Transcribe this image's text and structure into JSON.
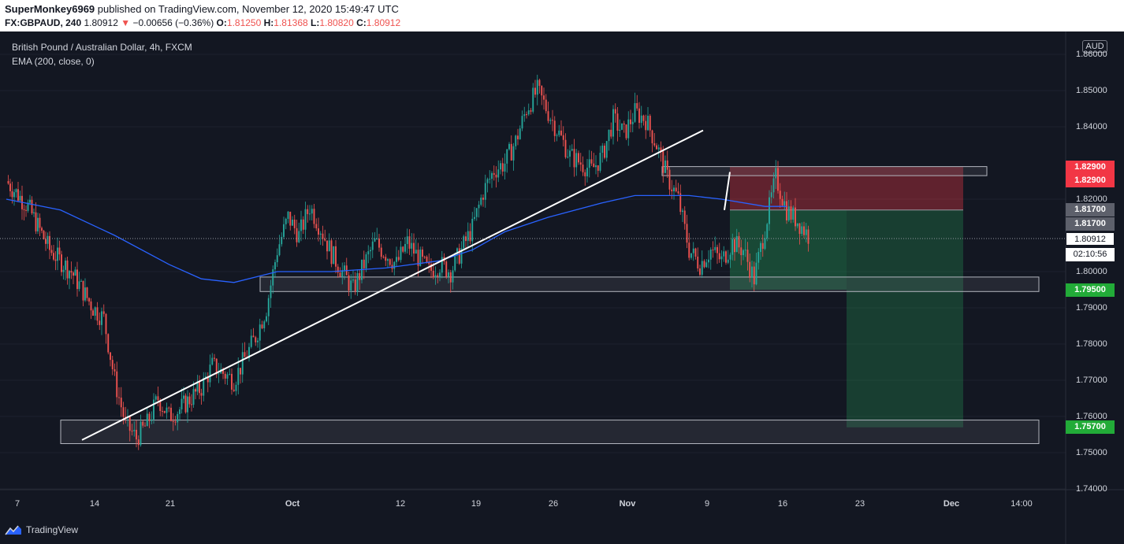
{
  "header": {
    "user": "SuperMonkey6969",
    "published_text": "published on TradingView.com, November 12, 2020 15:49:47 UTC",
    "symbol_timeframe": "FX:GBPAUD, 240",
    "last_price": "1.80912",
    "change_arrow": "▼",
    "change": "−0.00656 (−0.36%)",
    "open_label": "O:",
    "open": "1.81250",
    "high_label": "H:",
    "high": "1.81368",
    "low_label": "L:",
    "low": "1.80820",
    "close_label": "C:",
    "close": "1.80912"
  },
  "chart": {
    "title": "British Pound / Australian Dollar, 4h, FXCM",
    "indicator": "EMA (200, close, 0)",
    "currency": "AUD",
    "colors": {
      "background": "#131722",
      "up": "#26a69a",
      "down": "#ef5350",
      "ema": "#2962ff",
      "trendline": "#ffffff"
    }
  },
  "y_axis": {
    "ticks": [
      "1.86000",
      "1.85000",
      "1.84000",
      "1.82000",
      "1.80000",
      "1.79000",
      "1.78000",
      "1.77000",
      "1.76000",
      "1.75000",
      "1.74000"
    ]
  },
  "x_axis": {
    "ticks": [
      "7",
      "14",
      "21",
      "Oct",
      "12",
      "19",
      "26",
      "Nov",
      "9",
      "16",
      "23",
      "Dec",
      "14:00"
    ]
  },
  "price_tags": {
    "stop_1": "1.82900",
    "stop_2": "1.82900",
    "entry_1": "1.81700",
    "entry_2": "1.81700",
    "current": "1.80912",
    "countdown": "02:10:56",
    "target_1": "1.79500",
    "target_2": "1.75700"
  },
  "chart_data": {
    "type": "candlestick",
    "symbol": "FX:GBPAUD",
    "timeframe": "4h",
    "ylim": [
      1.74,
      1.862
    ],
    "close_path": [
      [
        0,
        1.825
      ],
      [
        2,
        1.818
      ],
      [
        4,
        1.806
      ],
      [
        6,
        1.8
      ],
      [
        8,
        1.79
      ],
      [
        9,
        1.787
      ],
      [
        10,
        1.77
      ],
      [
        11,
        1.758
      ],
      [
        12,
        1.754
      ],
      [
        13,
        1.758
      ],
      [
        14,
        1.765
      ],
      [
        15,
        1.76
      ],
      [
        16,
        1.762
      ],
      [
        18,
        1.768
      ],
      [
        19,
        1.774
      ],
      [
        20,
        1.772
      ],
      [
        21,
        1.77
      ],
      [
        22,
        1.776
      ],
      [
        23,
        1.782
      ],
      [
        24,
        1.79
      ],
      [
        25,
        1.806
      ],
      [
        26,
        1.815
      ],
      [
        27,
        1.81
      ],
      [
        28,
        1.818
      ],
      [
        29,
        1.812
      ],
      [
        30,
        1.805
      ],
      [
        31,
        1.8
      ],
      [
        32,
        1.795
      ],
      [
        33,
        1.802
      ],
      [
        34,
        1.808
      ],
      [
        35,
        1.805
      ],
      [
        36,
        1.802
      ],
      [
        37,
        1.808
      ],
      [
        38,
        1.804
      ],
      [
        39,
        1.8
      ],
      [
        40,
        1.802
      ],
      [
        41,
        1.8
      ],
      [
        42,
        1.806
      ],
      [
        43,
        1.812
      ],
      [
        44,
        1.822
      ],
      [
        45,
        1.828
      ],
      [
        46,
        1.83
      ],
      [
        47,
        1.836
      ],
      [
        48,
        1.845
      ],
      [
        49,
        1.85
      ],
      [
        50,
        1.844
      ],
      [
        51,
        1.838
      ],
      [
        52,
        1.832
      ],
      [
        53,
        1.83
      ],
      [
        54,
        1.828
      ],
      [
        55,
        1.832
      ],
      [
        56,
        1.842
      ],
      [
        57,
        1.838
      ],
      [
        58,
        1.844
      ],
      [
        59,
        1.842
      ],
      [
        60,
        1.835
      ],
      [
        61,
        1.826
      ],
      [
        62,
        1.82
      ],
      [
        63,
        1.806
      ],
      [
        64,
        1.802
      ],
      [
        65,
        1.806
      ],
      [
        66,
        1.803
      ],
      [
        67,
        1.808
      ],
      [
        68,
        1.806
      ],
      [
        69,
        1.798
      ],
      [
        70,
        1.812
      ],
      [
        71,
        1.826
      ],
      [
        72,
        1.817
      ],
      [
        73,
        1.814
      ],
      [
        74,
        1.81
      ]
    ],
    "x_range_days": [
      0,
      75
    ],
    "ema_200": [
      [
        0,
        1.82
      ],
      [
        5,
        1.817
      ],
      [
        10,
        1.81
      ],
      [
        15,
        1.802
      ],
      [
        18,
        1.798
      ],
      [
        21,
        1.797
      ],
      [
        25,
        1.8
      ],
      [
        30,
        1.8
      ],
      [
        35,
        1.801
      ],
      [
        40,
        1.803
      ],
      [
        43,
        1.806
      ],
      [
        46,
        1.811
      ],
      [
        50,
        1.815
      ],
      [
        55,
        1.819
      ],
      [
        58,
        1.821
      ],
      [
        60,
        1.821
      ],
      [
        63,
        1.821
      ],
      [
        66,
        1.82
      ],
      [
        70,
        1.818
      ],
      [
        72,
        1.818
      ]
    ],
    "trendline": {
      "from": [
        12,
        1.7535
      ],
      "to": [
        66,
        1.839
      ]
    },
    "zones": [
      {
        "label": "resistance box",
        "x_from": 60,
        "x_to": 90,
        "low": 1.8265,
        "high": 1.829
      },
      {
        "label": "support box",
        "x_from": 20,
        "x_to": 95,
        "low": 1.7945,
        "high": 1.7985
      },
      {
        "label": "demand box",
        "x_from": 4,
        "x_to": 95,
        "low": 1.7525,
        "high": 1.759
      }
    ],
    "short_position": {
      "entry": 1.817,
      "stop": 1.829,
      "target_1": 1.795,
      "target_2": 1.757
    },
    "annotations": [
      "1.82900",
      "1.81700",
      "1.80912",
      "1.79500",
      "1.75700"
    ]
  },
  "footer": {
    "brand": "TradingView"
  }
}
